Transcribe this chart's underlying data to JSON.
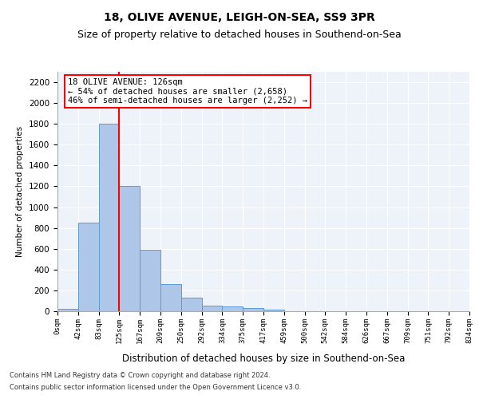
{
  "title": "18, OLIVE AVENUE, LEIGH-ON-SEA, SS9 3PR",
  "subtitle": "Size of property relative to detached houses in Southend-on-Sea",
  "xlabel": "Distribution of detached houses by size in Southend-on-Sea",
  "ylabel": "Number of detached properties",
  "bar_values": [
    25,
    850,
    1800,
    1200,
    590,
    260,
    130,
    50,
    45,
    32,
    15,
    0,
    0,
    0,
    0,
    0,
    0,
    0,
    0,
    0
  ],
  "bar_labels": [
    "0sqm",
    "42sqm",
    "83sqm",
    "125sqm",
    "167sqm",
    "209sqm",
    "250sqm",
    "292sqm",
    "334sqm",
    "375sqm",
    "417sqm",
    "459sqm",
    "500sqm",
    "542sqm",
    "584sqm",
    "626sqm",
    "667sqm",
    "709sqm",
    "751sqm",
    "792sqm",
    "834sqm"
  ],
  "bar_color": "#aec6e8",
  "bar_edgecolor": "#5b9bd5",
  "vline_x": 3,
  "vline_color": "red",
  "annotation_text": "18 OLIVE AVENUE: 126sqm\n← 54% of detached houses are smaller (2,658)\n46% of semi-detached houses are larger (2,252) →",
  "annotation_box_color": "white",
  "annotation_box_edgecolor": "red",
  "ylim": [
    0,
    2300
  ],
  "yticks": [
    0,
    200,
    400,
    600,
    800,
    1000,
    1200,
    1400,
    1600,
    1800,
    2000,
    2200
  ],
  "footer1": "Contains HM Land Registry data © Crown copyright and database right 2024.",
  "footer2": "Contains public sector information licensed under the Open Government Licence v3.0.",
  "bg_color": "#eef3fa",
  "fig_bg_color": "#ffffff",
  "title_fontsize": 10,
  "subtitle_fontsize": 9
}
